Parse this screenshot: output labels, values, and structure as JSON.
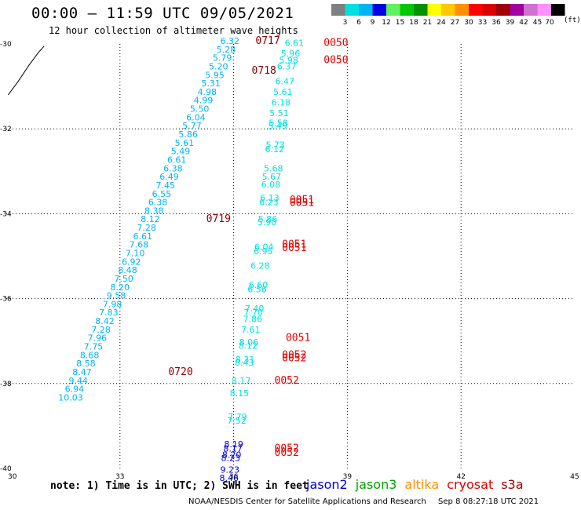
{
  "header": {
    "title": "00:00 – 11:59 UTC 09/05/2021",
    "subtitle": "12 hour collection of altimeter wave heights"
  },
  "colorbar": {
    "labels": [
      "3",
      "6",
      "9",
      "12",
      "15",
      "18",
      "21",
      "24",
      "27",
      "30",
      "33",
      "36",
      "39",
      "42",
      "45",
      "70"
    ],
    "unit": "(ft)",
    "colors": [
      "#808080",
      "#00e0e0",
      "#00b4f0",
      "#0000e0",
      "#60f060",
      "#00c800",
      "#009000",
      "#ffff00",
      "#ffc800",
      "#ff9000",
      "#ff0000",
      "#d80000",
      "#a00000",
      "#a000a0",
      "#d070d0",
      "#ff90ff",
      "#000000"
    ]
  },
  "footer": {
    "note": "note: 1) Time is in UTC; 2) SWH is in feet",
    "missions": [
      {
        "name": "jason2",
        "color": "#0000d8"
      },
      {
        "name": "jason3",
        "color": "#00a000"
      },
      {
        "name": "altika",
        "color": "#ff9000"
      },
      {
        "name": "cryosat",
        "color": "#e00000"
      },
      {
        "name": "s3a",
        "color": "#a00000"
      }
    ],
    "credit": "NOAA/NESDIS Center for Satellite Applications and Research",
    "timestamp": "Sep  8 08:27:18 UTC 2021"
  },
  "chart_data": {
    "type": "scatter",
    "xlim": [
      30,
      45
    ],
    "ylim": [
      -40,
      -30
    ],
    "xticks": [
      "30",
      "33",
      "36",
      "39",
      "42",
      "45"
    ],
    "yticks": [
      "-30",
      "-32",
      "-34",
      "-36",
      "-38",
      "-40"
    ],
    "grid": true,
    "coastline": [
      [
        30.05,
        -31.2
      ],
      [
        30.3,
        -30.9
      ],
      [
        30.6,
        -30.5
      ],
      [
        30.85,
        -30.2
      ],
      [
        31.0,
        -30.05
      ]
    ],
    "tracks": [
      {
        "color": "#00b4f0",
        "points": [
          [
            35.9,
            -30.0,
            "6.32"
          ],
          [
            35.8,
            -30.2,
            "5.28"
          ],
          [
            35.7,
            -30.4,
            "5.79"
          ],
          [
            35.6,
            -30.6,
            "5.20"
          ],
          [
            35.5,
            -30.8,
            "5.95"
          ],
          [
            35.4,
            -31.0,
            "5.31"
          ],
          [
            35.3,
            -31.2,
            "4.98"
          ],
          [
            35.2,
            -31.4,
            "4.99"
          ],
          [
            35.1,
            -31.6,
            "5.50"
          ],
          [
            35.0,
            -31.8,
            "6.04"
          ],
          [
            34.9,
            -32.0,
            "5.77"
          ],
          [
            34.8,
            -32.2,
            "5.86"
          ],
          [
            34.7,
            -32.4,
            "5.61"
          ],
          [
            34.6,
            -32.6,
            "5.49"
          ],
          [
            34.5,
            -32.8,
            "6.61"
          ],
          [
            34.4,
            -33.0,
            "6.38"
          ],
          [
            34.3,
            -33.2,
            "6.49"
          ],
          [
            34.2,
            -33.4,
            "7.45"
          ],
          [
            34.1,
            -33.6,
            "6.55"
          ],
          [
            34.0,
            -33.8,
            "6.38"
          ],
          [
            33.9,
            -34.0,
            "8.38"
          ],
          [
            33.8,
            -34.2,
            "8.12"
          ],
          [
            33.7,
            -34.4,
            "7.28"
          ],
          [
            33.6,
            -34.6,
            "6.61"
          ],
          [
            33.5,
            -34.8,
            "7.68"
          ],
          [
            33.4,
            -35.0,
            "7.10"
          ],
          [
            33.3,
            -35.2,
            "6.92"
          ],
          [
            33.2,
            -35.4,
            "8.48"
          ],
          [
            33.1,
            -35.6,
            "7.50"
          ],
          [
            33.0,
            -35.8,
            "8.20"
          ],
          [
            32.9,
            -36.0,
            "9.58"
          ],
          [
            32.8,
            -36.2,
            "7.98"
          ],
          [
            32.7,
            -36.4,
            "7.83"
          ],
          [
            32.6,
            -36.6,
            "8.42"
          ],
          [
            32.5,
            -36.8,
            "7.28"
          ],
          [
            32.4,
            -37.0,
            "7.96"
          ],
          [
            32.3,
            -37.2,
            "7.75"
          ],
          [
            32.2,
            -37.4,
            "8.68"
          ],
          [
            32.1,
            -37.6,
            "8.58"
          ],
          [
            32.0,
            -37.8,
            "8.47"
          ],
          [
            31.9,
            -38.0,
            "9.44"
          ],
          [
            31.8,
            -38.2,
            "6.94"
          ],
          [
            31.7,
            -38.4,
            "10.03"
          ]
        ],
        "passes": [
          [
            36.9,
            -30.0,
            "0717"
          ],
          [
            36.8,
            -30.7,
            "0718"
          ],
          [
            35.6,
            -34.2,
            "0719"
          ],
          [
            34.6,
            -37.8,
            "0720"
          ]
        ]
      },
      {
        "color": "#00e0e0",
        "points": [
          [
            37.6,
            -30.05,
            "6.61"
          ],
          [
            37.5,
            -30.3,
            "5.96"
          ],
          [
            37.45,
            -30.45,
            "5.98"
          ],
          [
            37.4,
            -30.6,
            "6.37"
          ],
          [
            37.35,
            -30.95,
            "6.47"
          ],
          [
            37.3,
            -31.2,
            "5.61"
          ],
          [
            37.25,
            -31.45,
            "6.18"
          ],
          [
            37.2,
            -31.7,
            "5.51"
          ],
          [
            37.18,
            -31.93,
            "5.58"
          ],
          [
            37.16,
            -32.0,
            "5.49"
          ],
          [
            37.1,
            -32.45,
            "5.73"
          ],
          [
            37.08,
            -32.55,
            "6.12"
          ],
          [
            37.05,
            -33.0,
            "5.68"
          ],
          [
            37.0,
            -33.2,
            "5.67"
          ],
          [
            36.98,
            -33.38,
            "6.08"
          ],
          [
            36.95,
            -33.7,
            "6.13"
          ],
          [
            36.93,
            -33.8,
            "6.23"
          ],
          [
            36.9,
            -34.2,
            "5.86"
          ],
          [
            36.88,
            -34.27,
            "5.90"
          ],
          [
            36.8,
            -34.85,
            "6.04"
          ],
          [
            36.78,
            -34.95,
            "6.95"
          ],
          [
            36.7,
            -35.3,
            "6.28"
          ],
          [
            36.65,
            -35.75,
            "6.60"
          ],
          [
            36.62,
            -35.85,
            "6.56"
          ],
          [
            36.55,
            -36.3,
            "7.40"
          ],
          [
            36.52,
            -36.4,
            "7.70"
          ],
          [
            36.5,
            -36.55,
            "7.86"
          ],
          [
            36.45,
            -36.8,
            "7.61"
          ],
          [
            36.4,
            -37.1,
            "8.06"
          ],
          [
            36.38,
            -37.18,
            "8.12"
          ],
          [
            36.3,
            -37.5,
            "8.31"
          ],
          [
            36.28,
            -37.58,
            "8.43"
          ],
          [
            36.2,
            -38.0,
            "8.17"
          ],
          [
            36.15,
            -38.3,
            "8.15"
          ],
          [
            36.1,
            -38.85,
            "7.79"
          ],
          [
            36.08,
            -38.95,
            "7.52"
          ]
        ],
        "passes": [
          [
            38.7,
            -30.05,
            "0050"
          ],
          [
            38.7,
            -30.45,
            "0050"
          ],
          [
            37.8,
            -33.75,
            "0051"
          ],
          [
            37.8,
            -33.82,
            "0051"
          ],
          [
            37.6,
            -34.8,
            "0051"
          ],
          [
            37.6,
            -34.88,
            "0051"
          ],
          [
            37.7,
            -37.0,
            "0051"
          ],
          [
            37.6,
            -37.4,
            "0052"
          ],
          [
            37.6,
            -37.48,
            "0052"
          ],
          [
            37.4,
            -38.0,
            "0052"
          ],
          [
            37.4,
            -39.6,
            "0052"
          ],
          [
            37.4,
            -39.7,
            "0052"
          ]
        ]
      },
      {
        "color": "#0000d8",
        "points": [
          [
            36.0,
            -39.5,
            "8.19"
          ],
          [
            35.98,
            -39.6,
            "8.17"
          ],
          [
            35.95,
            -39.75,
            "8.20"
          ],
          [
            35.92,
            -39.82,
            "8.23"
          ],
          [
            35.9,
            -40.1,
            "9.23"
          ],
          [
            35.88,
            -40.3,
            "8.46"
          ]
        ]
      }
    ]
  }
}
